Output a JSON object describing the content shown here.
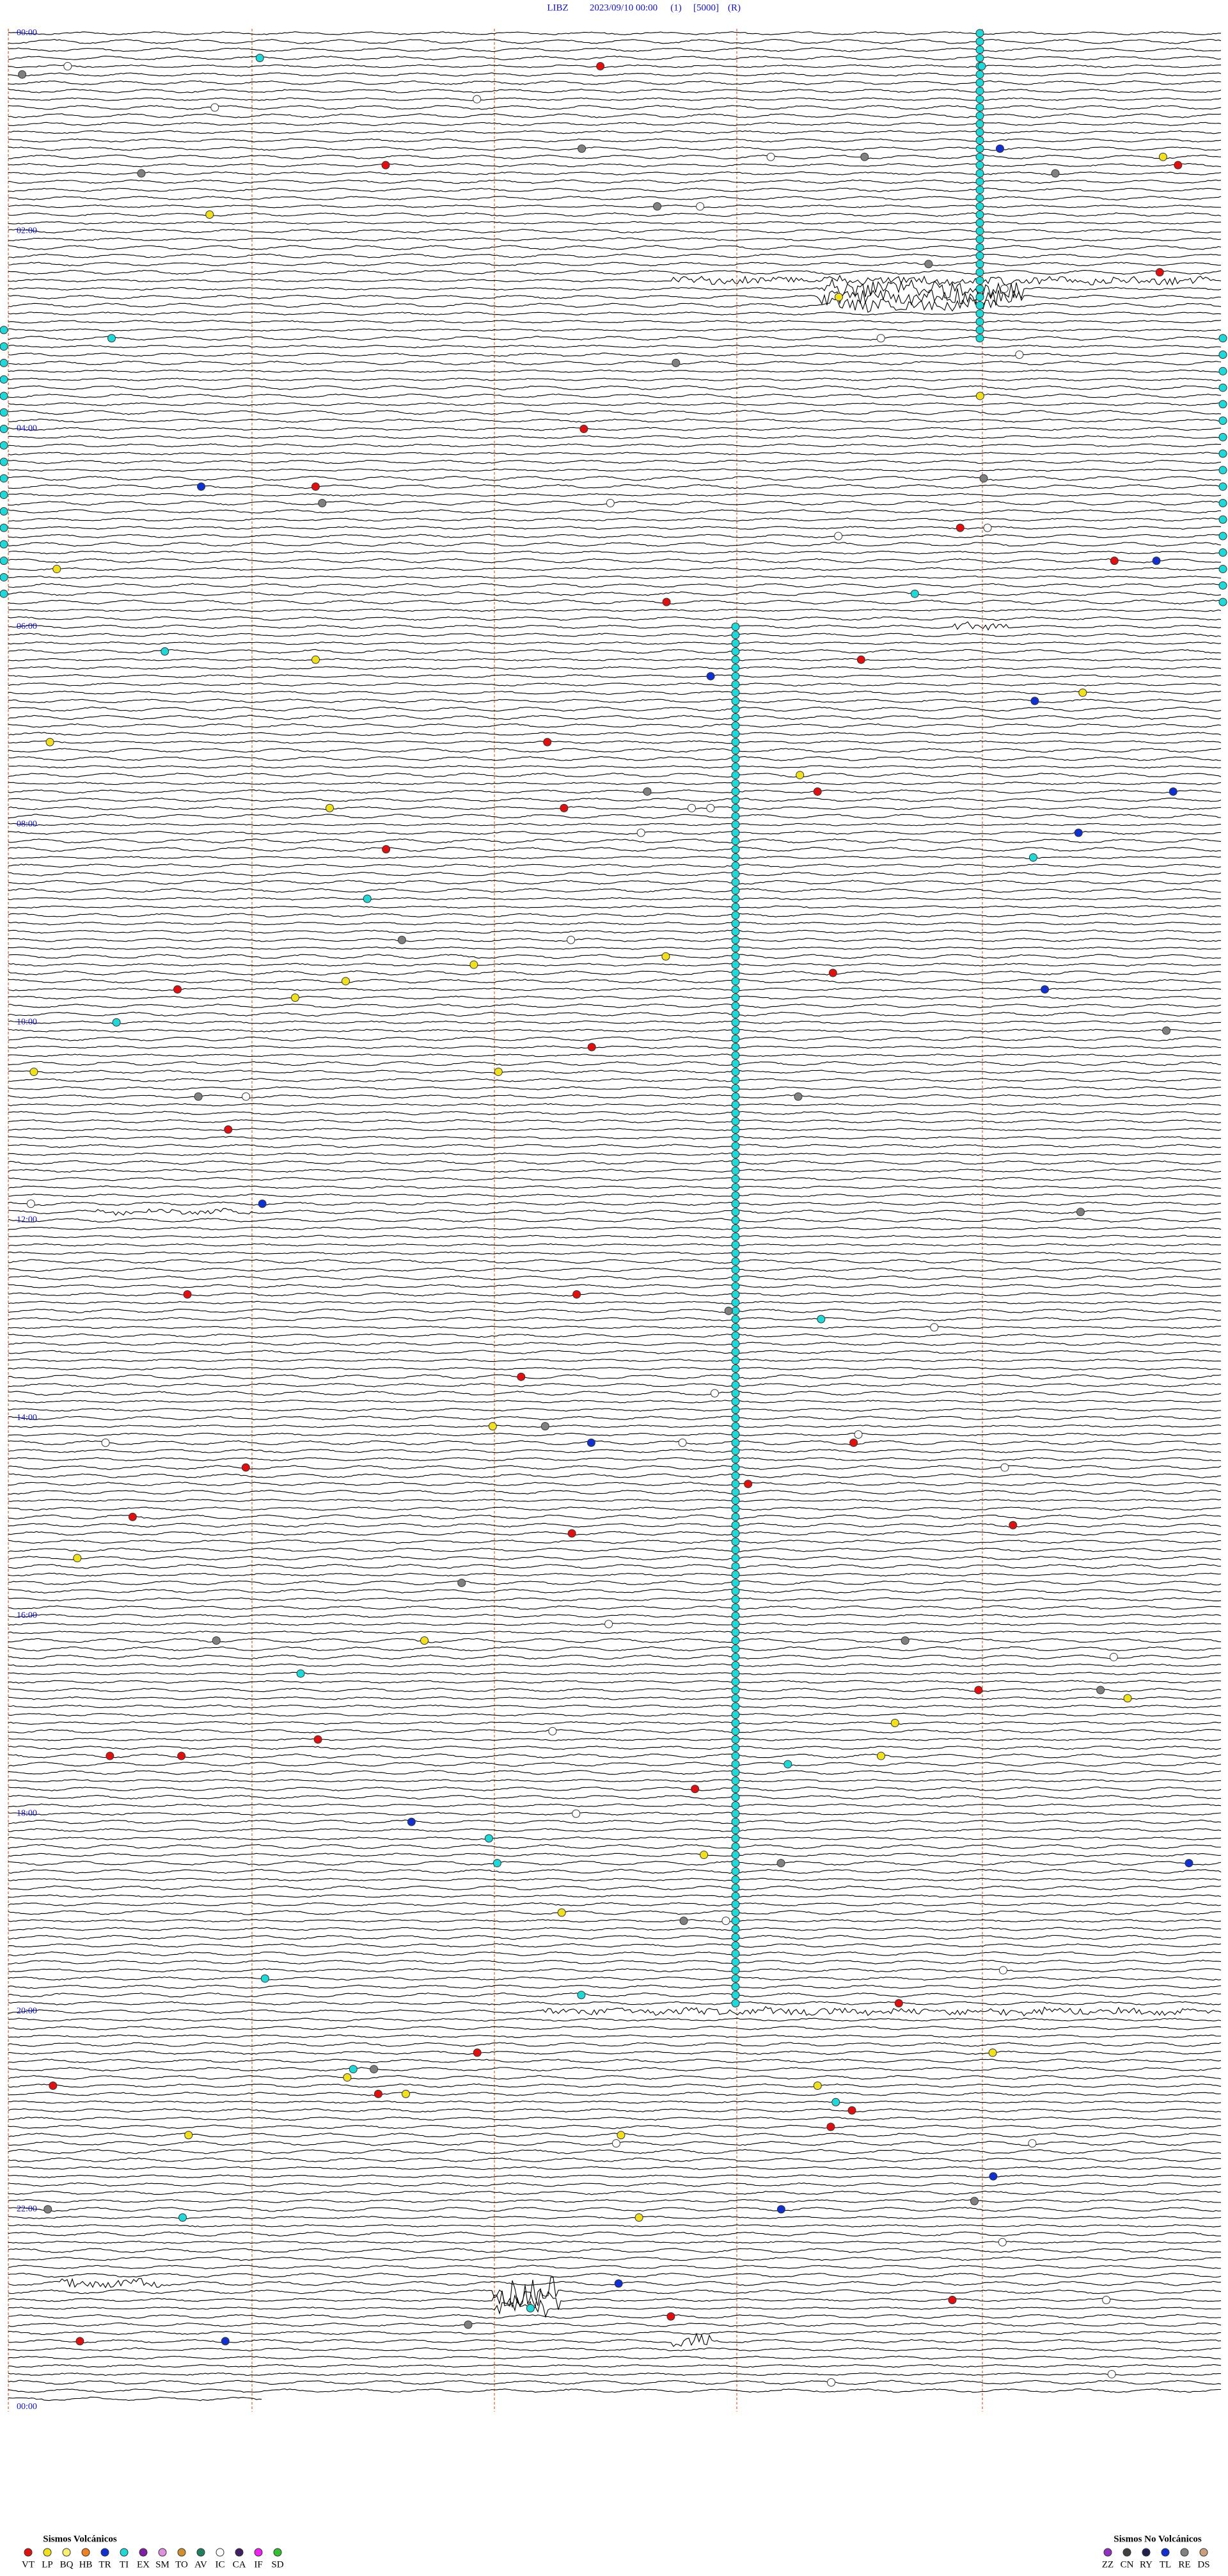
{
  "header": {
    "station": "LIBZ",
    "datetime": "2023/09/10 00:00",
    "channel": "(1)",
    "scale": "[5000]",
    "mode": "(R)"
  },
  "time_labels": [
    "00:00",
    "02:00",
    "04:00",
    "06:00",
    "08:00",
    "10:00",
    "12:00",
    "14:00",
    "16:00",
    "18:00",
    "20:00",
    "22:00",
    "00:00"
  ],
  "legend": {
    "volcanic": {
      "title": "Sismos Volcánicos",
      "items": [
        {
          "code": "VT",
          "color": "#e01010"
        },
        {
          "code": "LP",
          "color": "#f0e020"
        },
        {
          "code": "BQ",
          "color": "#f8f070"
        },
        {
          "code": "HB",
          "color": "#f08020"
        },
        {
          "code": "TR",
          "color": "#1030d0"
        },
        {
          "code": "TI",
          "color": "#20d8d8"
        },
        {
          "code": "EX",
          "color": "#8020a0"
        },
        {
          "code": "SM",
          "color": "#e090e0"
        },
        {
          "code": "TO",
          "color": "#d09030"
        },
        {
          "code": "AV",
          "color": "#208060"
        },
        {
          "code": "IC",
          "color": "#ffffff"
        },
        {
          "code": "CA",
          "color": "#402060"
        },
        {
          "code": "IF",
          "color": "#f020f0"
        },
        {
          "code": "SD",
          "color": "#30c030"
        }
      ]
    },
    "non_volcanic": {
      "title": "Sismos No Volcánicos",
      "items": [
        {
          "code": "ZZ",
          "color": "#9030c0"
        },
        {
          "code": "CN",
          "color": "#404040"
        },
        {
          "code": "RY",
          "color": "#202050"
        },
        {
          "code": "TL",
          "color": "#1030d0"
        },
        {
          "code": "RE",
          "color": "#808080"
        },
        {
          "code": "DS",
          "color": "#c8a080"
        }
      ]
    }
  }
}
